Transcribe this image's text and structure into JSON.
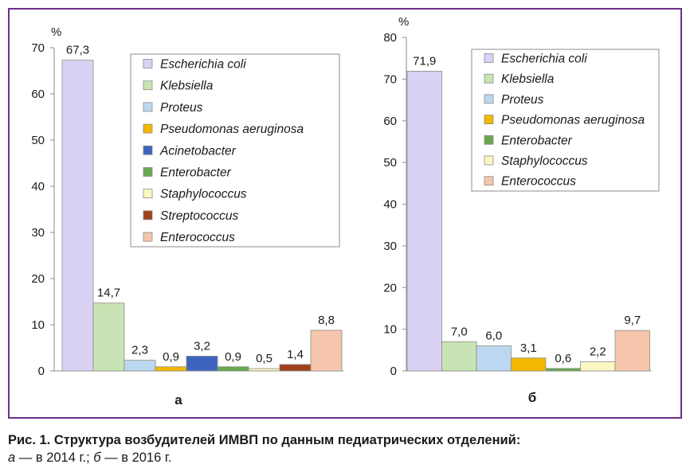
{
  "chart_data": [
    {
      "type": "bar",
      "panel_label": "а",
      "y_unit_label": "%",
      "ylim": [
        0,
        70
      ],
      "yticks": [
        0,
        10,
        20,
        30,
        40,
        50,
        60,
        70
      ],
      "grid": false,
      "legend_position": "top-right",
      "value_labels": [
        "67,3",
        "14,7",
        "2,3",
        "0,9",
        "3,2",
        "0,9",
        "0,5",
        "1,4",
        "8,8"
      ],
      "series": [
        {
          "name": "Escherichia coli",
          "value": 67.3,
          "color": "#d9d2f5"
        },
        {
          "name": "Klebsiella",
          "value": 14.7,
          "color": "#c9e4b4"
        },
        {
          "name": "Proteus",
          "value": 2.3,
          "color": "#bcd8f0"
        },
        {
          "name": "Pseudomonas aeruginosa",
          "value": 0.9,
          "color": "#f5b800"
        },
        {
          "name": "Acinetobacter",
          "value": 3.2,
          "color": "#3e64c0"
        },
        {
          "name": "Enterobacter",
          "value": 0.9,
          "color": "#6aa84f"
        },
        {
          "name": "Staphylococcus",
          "value": 0.5,
          "color": "#fbf7c2"
        },
        {
          "name": "Streptococcus",
          "value": 1.4,
          "color": "#a0421a"
        },
        {
          "name": "Enterococcus",
          "value": 8.8,
          "color": "#f6c6ac"
        }
      ]
    },
    {
      "type": "bar",
      "panel_label": "б",
      "y_unit_label": "%",
      "ylim": [
        0,
        80
      ],
      "yticks": [
        0,
        10,
        20,
        30,
        40,
        50,
        60,
        70,
        80
      ],
      "grid": false,
      "legend_position": "top-right",
      "value_labels": [
        "71,9",
        "7,0",
        "6,0",
        "3,1",
        "0,6",
        "2,2",
        "9,7"
      ],
      "series": [
        {
          "name": "Escherichia coli",
          "value": 71.9,
          "color": "#d9d2f5"
        },
        {
          "name": "Klebsiella",
          "value": 7.0,
          "color": "#c9e4b4"
        },
        {
          "name": "Proteus",
          "value": 6.0,
          "color": "#bcd8f0"
        },
        {
          "name": "Pseudomonas aeruginosa",
          "value": 3.1,
          "color": "#f5b800"
        },
        {
          "name": "Enterobacter",
          "value": 0.6,
          "color": "#6aa84f"
        },
        {
          "name": "Staphylococcus",
          "value": 2.2,
          "color": "#fbf7c2"
        },
        {
          "name": "Enterococcus",
          "value": 9.7,
          "color": "#f6c6ac"
        }
      ]
    }
  ],
  "caption": {
    "title": "Рис. 1. Структура возбудителей ИМВП по данным педиатрических отделений:",
    "line2_a": "а",
    "line2_a_text": " — в 2014 г.; ",
    "line2_b": "б",
    "line2_b_text": " — в 2016 г."
  },
  "frame_color": "#6d2f8e"
}
